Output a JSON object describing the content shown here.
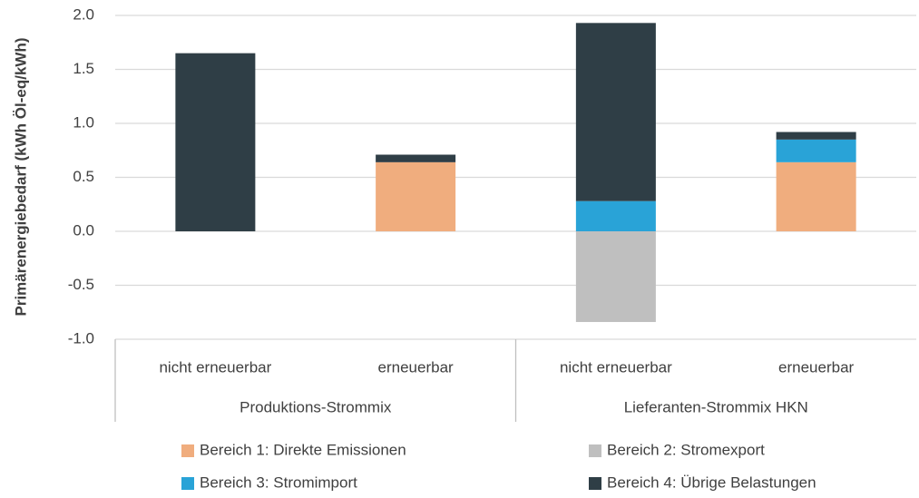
{
  "chart_data": {
    "type": "stacked-bar",
    "y_label": "Primärenergiebedarf (kWh Öl-eq/kWh)",
    "categories": [
      "nicht erneuerbar",
      "erneuerbar",
      "nicht erneuerbar",
      "erneuerbar"
    ],
    "groups": [
      "Produktions-Strommix",
      "Lieferanten-Strommix HKN"
    ],
    "series": [
      {
        "name": "Bereich 1: Direkte Emissionen",
        "color": "#f0ad7e",
        "values": [
          0,
          0.64,
          0,
          0.64
        ]
      },
      {
        "name": "Bereich 2: Stromexport",
        "color": "#bfbfbf",
        "values": [
          0,
          0,
          -0.84,
          0
        ]
      },
      {
        "name": "Bereich 3: Stromimport",
        "color": "#29a3d7",
        "values": [
          0,
          0,
          0.28,
          0.21
        ]
      },
      {
        "name": "Bereich 4: Übrige Belastungen",
        "color": "#2f3e46",
        "values": [
          1.65,
          0.07,
          1.65,
          0.07
        ]
      }
    ],
    "ylim": [
      -1,
      2
    ],
    "yticks": [
      {
        "value": -1,
        "label": "-1.0"
      },
      -0.5,
      {
        "value": 0,
        "label": "0.0"
      },
      0.5,
      {
        "value": 1,
        "label": "1.0"
      },
      1.5,
      {
        "value": 2,
        "label": "2.0"
      }
    ],
    "grid": true
  }
}
